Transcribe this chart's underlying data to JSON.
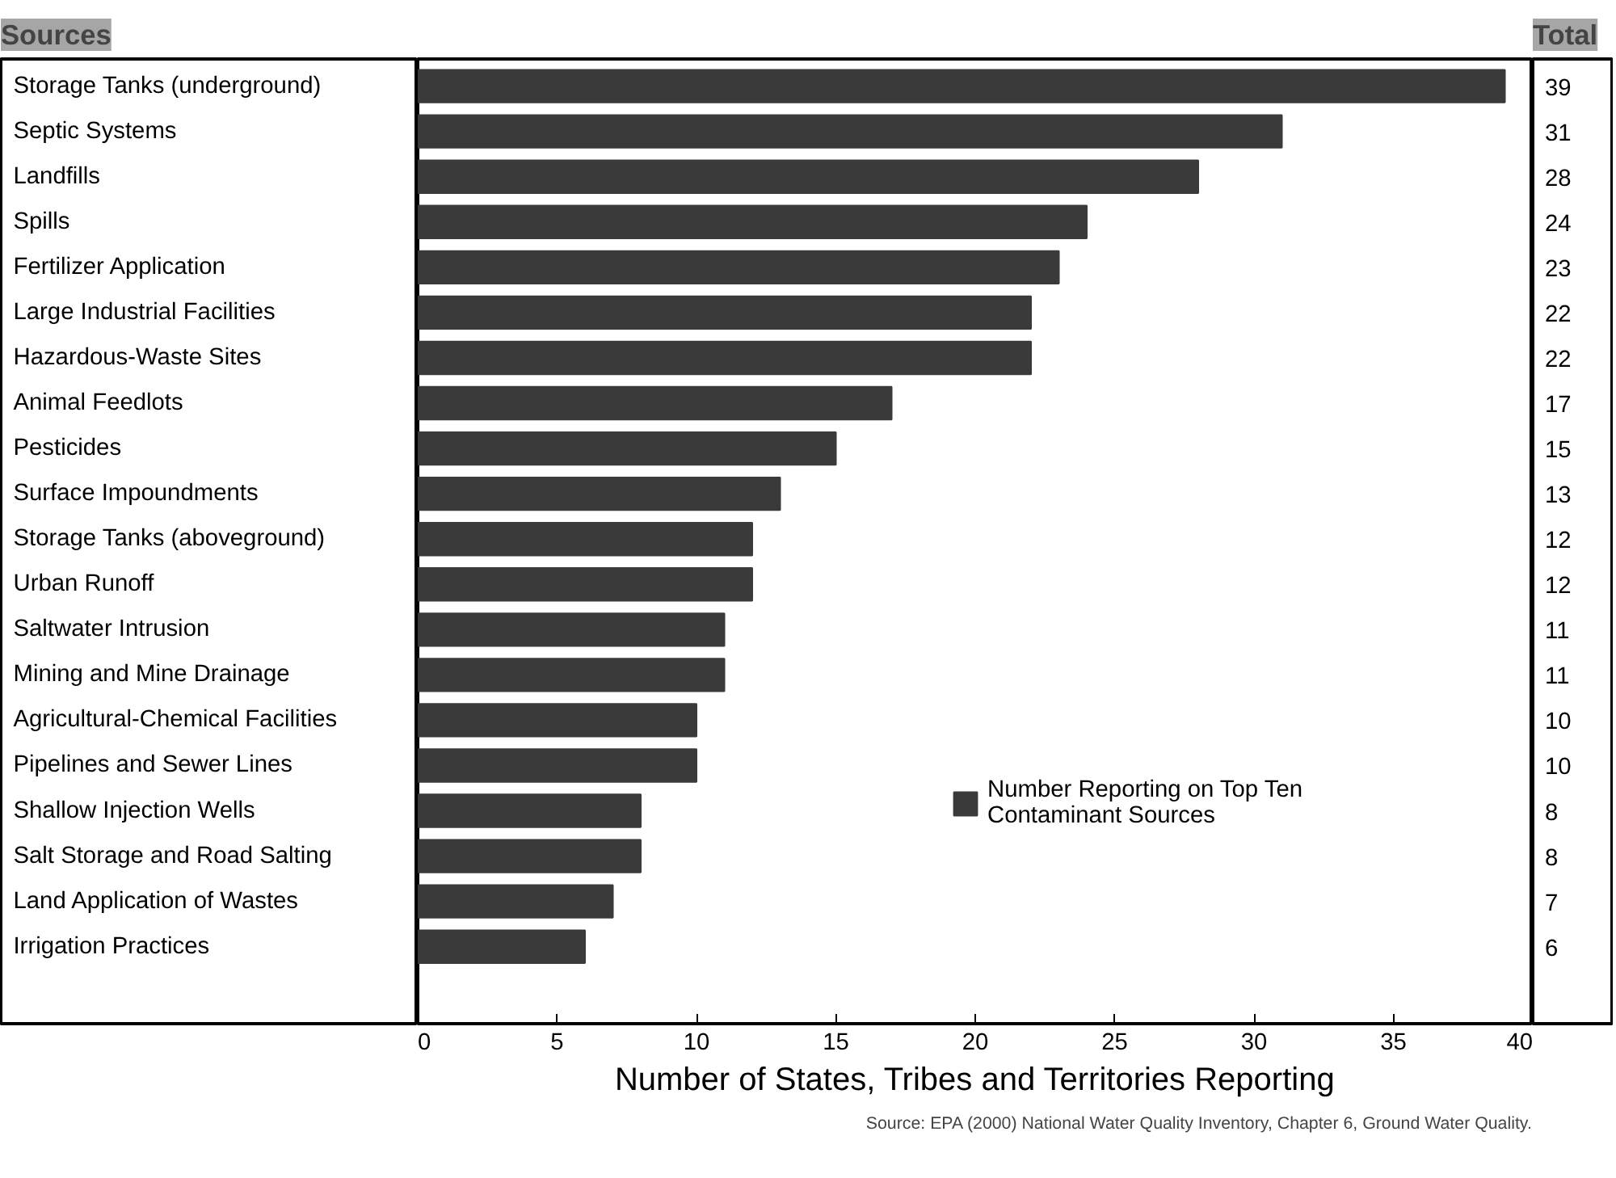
{
  "chart_data": [
    {
      "type": "bar",
      "orientation": "horizontal",
      "ylabel": "Sources",
      "xlabel": "Number of States, Tribes and Territories Reporting",
      "categories": [
        "Storage Tanks (underground)",
        "Septic Systems",
        "Landfills",
        "Spills",
        "Fertilizer Application",
        "Large Industrial Facilities",
        "Hazardous-Waste Sites",
        "Animal Feedlots",
        "Pesticides",
        "Surface Impoundments",
        "Storage Tanks (aboveground)",
        "Urban Runoff",
        "Saltwater Intrusion",
        "Mining and Mine Drainage",
        "Agricultural-Chemical Facilities",
        "Pipelines and Sewer Lines",
        "Shallow Injection Wells",
        "Salt Storage and Road Salting",
        "Land Application of Wastes",
        "Irrigation Practices"
      ],
      "series": [
        {
          "name": "Number Reporting on Top Ten Contaminant Sources",
          "color": "#3a3a3a",
          "values": [
            39,
            31,
            28,
            24,
            23,
            22,
            22,
            17,
            15,
            13,
            12,
            12,
            11,
            11,
            10,
            10,
            8,
            8,
            7,
            6
          ]
        }
      ],
      "xlim": [
        0,
        40
      ],
      "xticks": [
        0,
        5,
        10,
        15,
        20,
        25,
        30,
        35,
        40
      ],
      "legend": "right",
      "grid": false,
      "annotations": [
        "Source: EPA (2000) National Water Quality Inventory, Chapter 6, Ground Water Quality."
      ]
    },
    {
      "type": "other",
      "title": "Total",
      "annotations": [
        "39",
        "31",
        "28",
        "24",
        "23",
        "22",
        "22",
        "17",
        "15",
        "13",
        "12",
        "12",
        "11",
        "11",
        "10",
        "10",
        "8",
        "8",
        "7",
        "6"
      ]
    }
  ]
}
